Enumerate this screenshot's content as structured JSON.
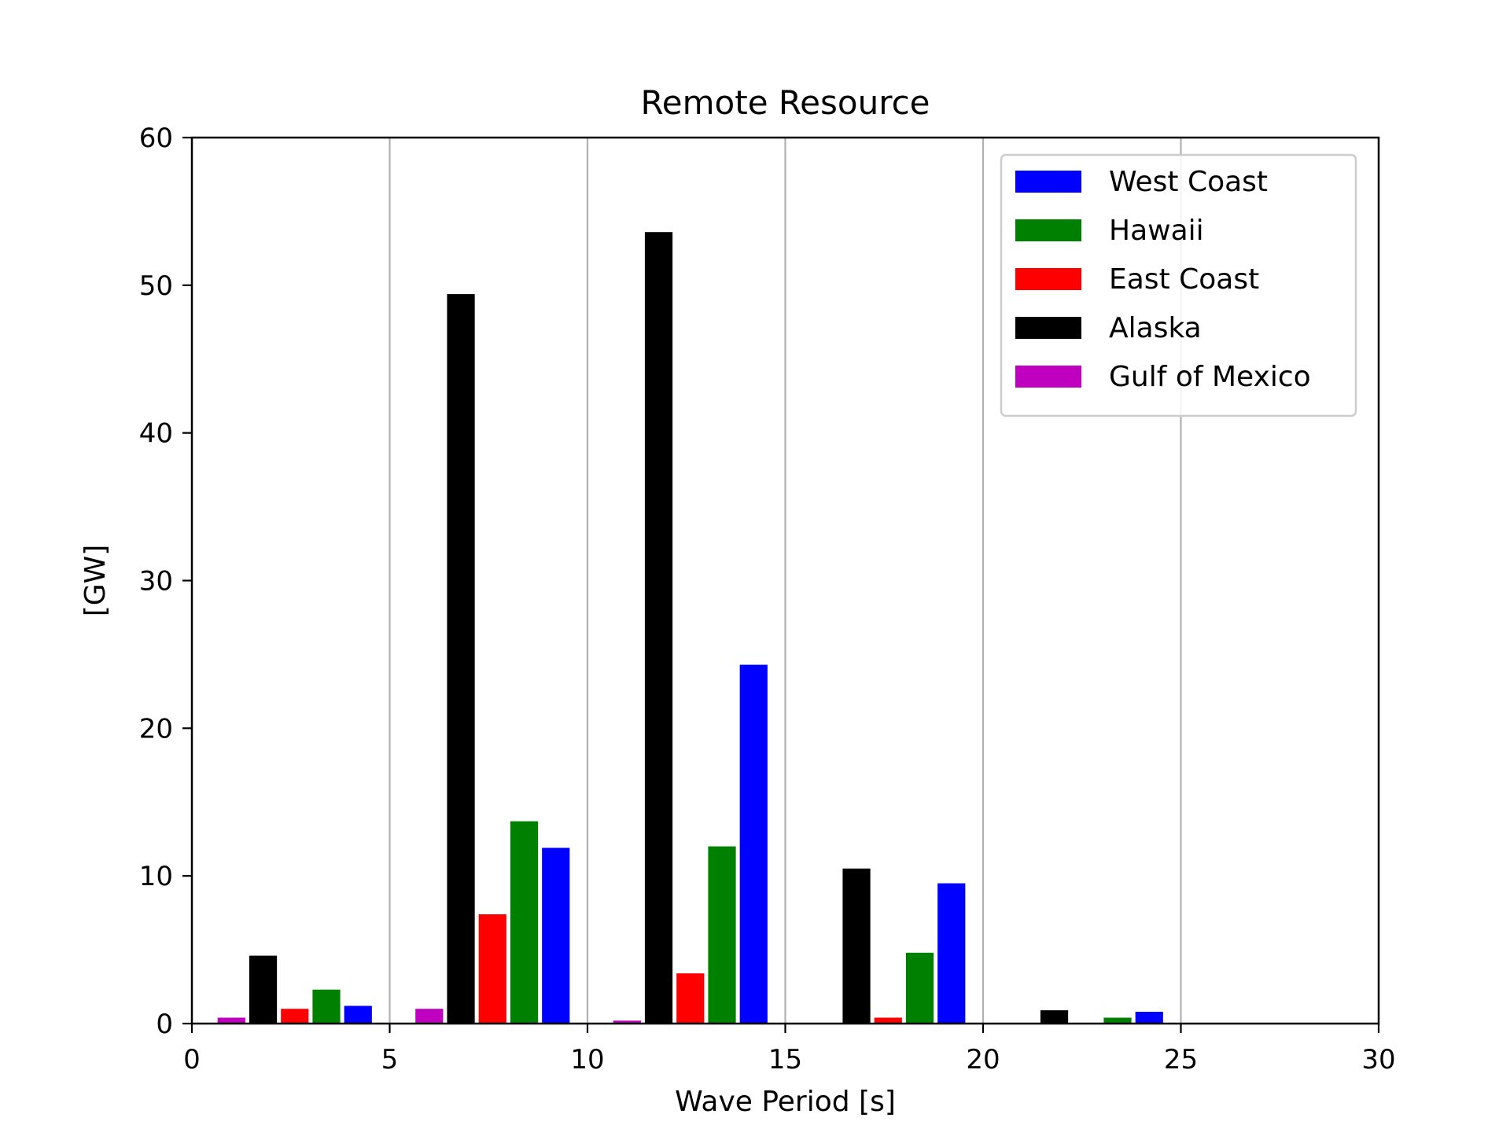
{
  "chart_data": {
    "type": "bar",
    "title": "Remote Resource",
    "xlabel": "Wave Period [s]",
    "ylabel": "[GW]",
    "xlim": [
      0,
      30
    ],
    "ylim": [
      0,
      60
    ],
    "xticks": [
      0,
      5,
      10,
      15,
      20,
      25,
      30
    ],
    "yticks": [
      0,
      10,
      20,
      30,
      40,
      50,
      60
    ],
    "x_tick_labels": [
      "0",
      "5",
      "10",
      "15",
      "20",
      "25",
      "30"
    ],
    "y_tick_labels": [
      "0",
      "10",
      "20",
      "30",
      "40",
      "50",
      "60"
    ],
    "grid": "vertical",
    "legend_position": "upper-right",
    "categories": [
      "0–5",
      "5–10",
      "10–15",
      "15–20",
      "20–25"
    ],
    "series": [
      {
        "name": "West Coast",
        "color": "#0000ff",
        "x": [
          4.2,
          9.2,
          14.2,
          19.2,
          24.2
        ],
        "values": [
          1.2,
          11.9,
          24.3,
          9.5,
          0.8
        ]
      },
      {
        "name": "Hawaii",
        "color": "#008000",
        "x": [
          3.4,
          8.4,
          13.4,
          18.4,
          23.4
        ],
        "values": [
          2.3,
          13.7,
          12.0,
          4.8,
          0.4
        ]
      },
      {
        "name": "East Coast",
        "color": "#ff0000",
        "x": [
          2.6,
          7.6,
          12.6,
          17.6,
          22.6
        ],
        "values": [
          1.0,
          7.4,
          3.4,
          0.4,
          0.0
        ]
      },
      {
        "name": "Alaska",
        "color": "#000000",
        "x": [
          1.8,
          6.8,
          11.8,
          16.8,
          21.8
        ],
        "values": [
          4.6,
          49.4,
          53.6,
          10.5,
          0.9
        ]
      },
      {
        "name": "Gulf of Mexico",
        "color": "#bf00bf",
        "x": [
          1.0,
          6.0,
          11.0,
          16.0,
          21.0
        ],
        "values": [
          0.4,
          1.0,
          0.2,
          0.0,
          0.0
        ]
      }
    ],
    "bar_width": 0.7
  }
}
